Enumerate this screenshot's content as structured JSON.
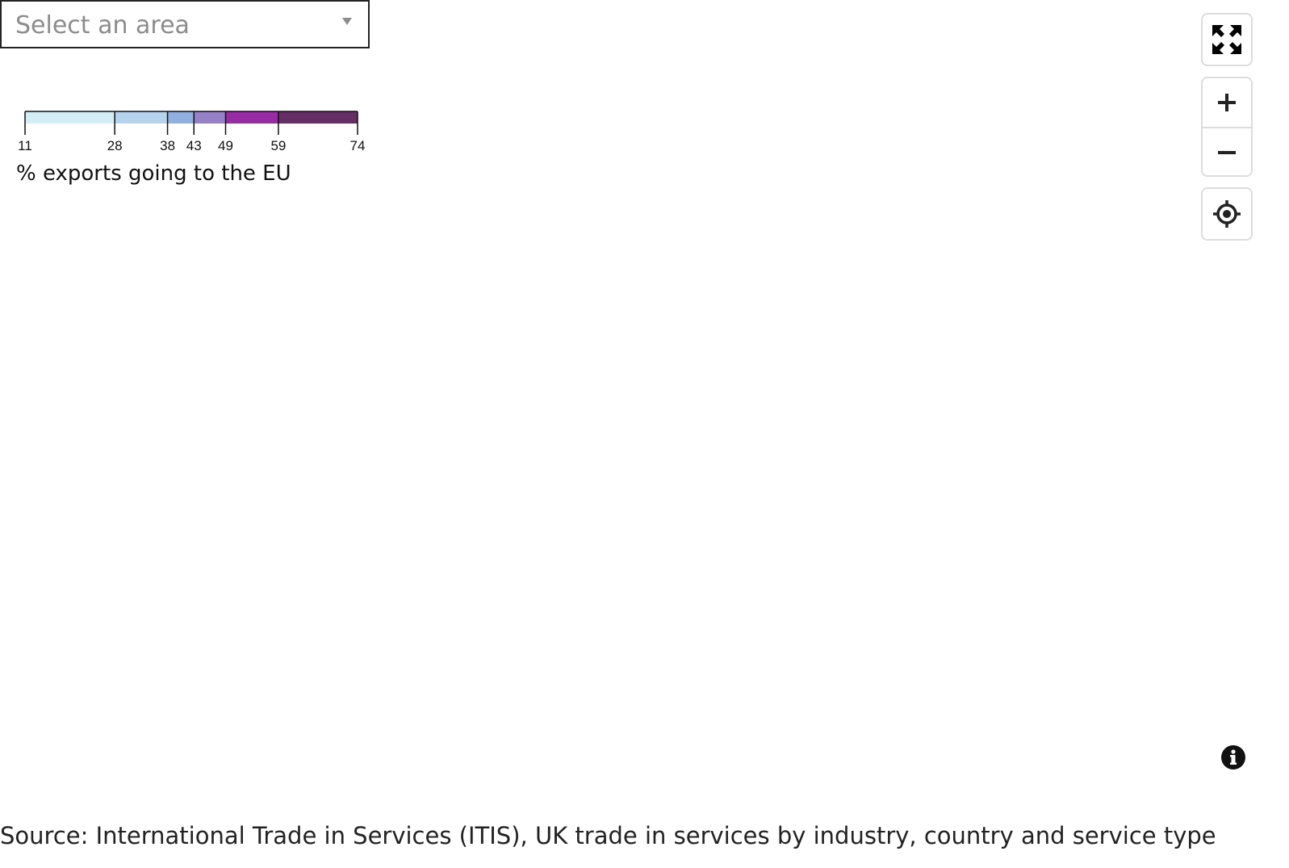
{
  "area_select": {
    "placeholder": "Select an area"
  },
  "legend": {
    "title": "% exports going to the EU",
    "breaks": [
      11,
      28,
      38,
      43,
      49,
      59,
      74
    ],
    "break_labels": [
      "11",
      "28",
      "38",
      "43",
      "49",
      "59",
      "74"
    ],
    "colors": [
      "#d3eef4",
      "#b6d3ee",
      "#8fb0e0",
      "#9680c8",
      "#962ba4",
      "#652e65"
    ]
  },
  "controls": {
    "fullscreen_icon": "fullscreen-icon",
    "zoom_in_icon": "plus-icon",
    "zoom_out_icon": "minus-icon",
    "locate_icon": "crosshair-icon",
    "info_icon": "info-icon"
  },
  "source": "Source: International Trade in Services (ITIS), UK trade in services by industry, country and service type"
}
